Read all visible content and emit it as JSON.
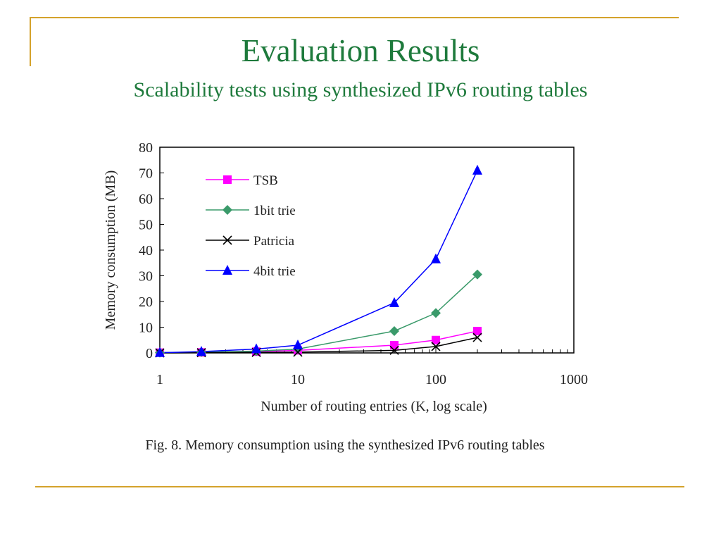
{
  "slide": {
    "title": "Evaluation Results",
    "subtitle": "Scalability tests using synthesized IPv6 routing tables",
    "caption": "Fig. 8.  Memory consumption using the synthesized IPv6 routing tables"
  },
  "chart_data": {
    "type": "line",
    "xlabel": "Number of routing entries (K, log scale)",
    "ylabel": "Memory consumption (MB)",
    "x_scale": "log",
    "xlim": [
      1,
      1000
    ],
    "ylim": [
      0,
      80
    ],
    "x_ticks": [
      "1",
      "10",
      "100",
      "1000"
    ],
    "y_ticks": [
      "0",
      "10",
      "20",
      "30",
      "40",
      "50",
      "60",
      "70",
      "80"
    ],
    "grid": false,
    "legend_position": "top-left",
    "x": [
      1,
      2,
      5,
      10,
      50,
      100,
      200
    ],
    "series": [
      {
        "name": "TSB",
        "color": "#ff00ff",
        "marker": "square",
        "values": [
          0.1,
          0.2,
          0.5,
          1.0,
          3.0,
          5.0,
          8.5
        ]
      },
      {
        "name": "1bit trie",
        "color": "#3a9a6a",
        "marker": "diamond",
        "values": [
          0.1,
          0.3,
          0.7,
          1.5,
          8.5,
          15.5,
          30.5
        ]
      },
      {
        "name": "Patricia",
        "color": "#000000",
        "marker": "x",
        "values": [
          0.0,
          0.1,
          0.2,
          0.3,
          1.0,
          2.5,
          6.0
        ]
      },
      {
        "name": "4bit trie",
        "color": "#0000ff",
        "marker": "triangle",
        "values": [
          0.1,
          0.5,
          1.5,
          3.0,
          19.5,
          36.5,
          71.0
        ]
      }
    ]
  }
}
